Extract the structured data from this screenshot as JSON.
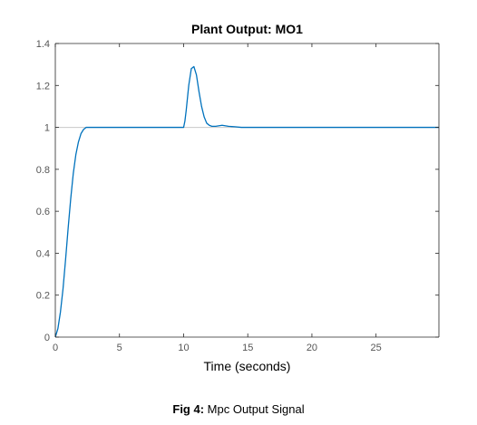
{
  "chart_data": {
    "type": "line",
    "title": "Plant Output:  MO1",
    "xlabel": "Time (seconds)",
    "ylabel": "",
    "xlim": [
      0,
      29.9
    ],
    "ylim": [
      0,
      1.4
    ],
    "x_ticks": [
      0,
      5,
      10,
      15,
      20,
      25
    ],
    "x_tick_labels": [
      "0",
      "5",
      "10",
      "15",
      "20",
      "25"
    ],
    "y_ticks": [
      0,
      0.2,
      0.4,
      0.6,
      0.8,
      1,
      1.2,
      1.4
    ],
    "y_tick_labels": [
      "0",
      "0.2",
      "0.4",
      "0.6",
      "0.8",
      "1",
      "1.2",
      "1.4"
    ],
    "grid": false,
    "reference_line": {
      "y": 1,
      "color": "#c8c8c8"
    },
    "series": [
      {
        "color": "#0072bd",
        "x": [
          0,
          0.2,
          0.4,
          0.6,
          0.8,
          1.0,
          1.2,
          1.4,
          1.6,
          1.8,
          2.0,
          2.2,
          2.4,
          2.6,
          2.8,
          3.0,
          4.0,
          6.0,
          8.0,
          10.0,
          10.1,
          10.2,
          10.4,
          10.6,
          10.8,
          11.0,
          11.2,
          11.4,
          11.6,
          11.8,
          12.0,
          12.2,
          12.5,
          13.0,
          13.5,
          14.0,
          14.5,
          16.0,
          20.0,
          25.0,
          29.9
        ],
        "y": [
          0,
          0.04,
          0.12,
          0.23,
          0.37,
          0.52,
          0.66,
          0.78,
          0.87,
          0.93,
          0.97,
          0.99,
          1.0,
          1.0,
          1.0,
          1.0,
          1.0,
          1.0,
          1.0,
          1.0,
          1.03,
          1.08,
          1.2,
          1.28,
          1.29,
          1.25,
          1.17,
          1.1,
          1.05,
          1.02,
          1.01,
          1.005,
          1.005,
          1.01,
          1.005,
          1.003,
          1.0,
          1.0,
          1.0,
          1.0,
          1.0
        ]
      }
    ]
  },
  "caption": {
    "label": "Fig 4:",
    "text": "Mpc Output Signal"
  },
  "colors": {
    "line": "#0072bd",
    "axes": "#262626",
    "reference": "#c8c8c8"
  }
}
